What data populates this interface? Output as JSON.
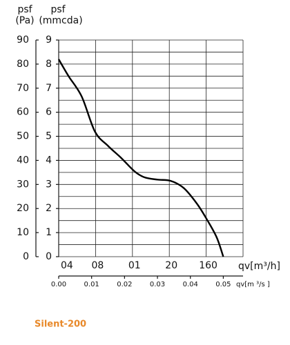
{
  "chart_data": {
    "type": "line",
    "y_axis_label": [
      "psf",
      "(Pa)"
    ],
    "y2_axis_label": [
      "psf",
      "(mmcda)"
    ],
    "flow_labels": [
      "04",
      "08",
      "01",
      "20",
      "160"
    ],
    "flow_axis_label": "qv[m³/h]",
    "x_axis_label": "qv[m ³/s ]",
    "product": "Silent-200",
    "xlim": [
      0,
      0.056
    ],
    "xticks": [
      {
        "value": 0,
        "label": "0.00"
      },
      {
        "value": 0.01,
        "label": "0.01"
      },
      {
        "value": 0.02,
        "label": "0.02"
      },
      {
        "value": 0.03,
        "label": "0.03"
      },
      {
        "value": 0.04,
        "label": "0.04"
      },
      {
        "value": 0.05,
        "label": "0.05"
      }
    ],
    "ylim": [
      0,
      90
    ],
    "yticks": [
      0,
      10,
      20,
      30,
      40,
      50,
      60,
      70,
      80,
      90
    ],
    "y2lim": [
      0,
      9
    ],
    "y2ticks": [
      0,
      1,
      2,
      3,
      4,
      5,
      6,
      7,
      8,
      9
    ],
    "grid": true,
    "series": [
      {
        "name": "Silent-200",
        "color": "#000000",
        "x": [
          0.0,
          0.003,
          0.007,
          0.011,
          0.015,
          0.019,
          0.023,
          0.026,
          0.03,
          0.034,
          0.038,
          0.042,
          0.045,
          0.048,
          0.05
        ],
        "values": [
          82,
          75,
          66.5,
          52,
          46,
          41,
          35.5,
          33,
          32,
          31.5,
          28.5,
          22,
          15.5,
          8,
          0
        ]
      }
    ]
  }
}
